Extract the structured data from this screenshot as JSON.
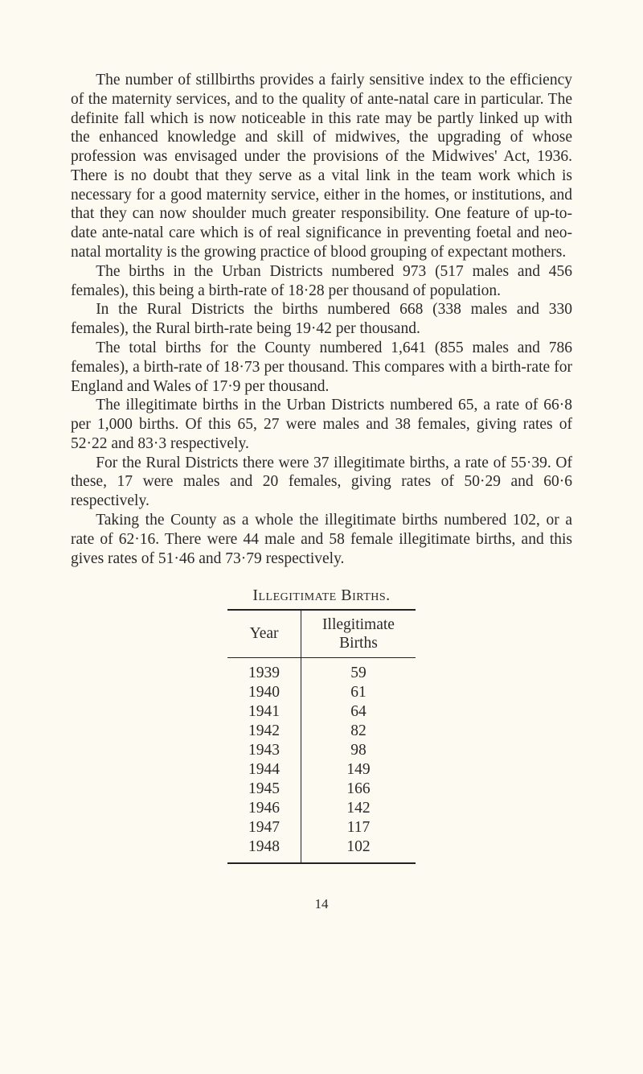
{
  "paragraphs": {
    "p1": "The number of stillbirths provides a fairly sensitive index to the efficiency of the maternity services, and to the quality of ante-natal care in particular. The definite fall which is now noticeable in this rate may be partly linked up with the enhanced knowledge and skill of midwives, the upgrading of whose profession was envisaged under the provisions of the Midwives' Act, 1936. There is no doubt that they serve as a vital link in the team work which is necessary for a good maternity service, either in the homes, or institutions, and that they can now shoulder much greater responsibility. One feature of up-to-date ante-natal care which is of real significance in preventing foetal and neo-natal mortality is the growing practice of blood grouping of expectant mothers.",
    "p2": "The births in the Urban Districts numbered 973 (517 males and 456 females), this being a birth-rate of 18·28 per thousand of population.",
    "p3": "In the Rural Districts the births numbered 668 (338 males and 330 females), the Rural birth-rate being 19·42 per thousand.",
    "p4": "The total births for the County numbered 1,641 (855 males and 786 females), a birth-rate of 18·73 per thousand. This compares with a birth-rate for England and Wales of 17·9 per thousand.",
    "p5": "The illegitimate births in the Urban Districts numbered 65, a rate of 66·8 per 1,000 births. Of this 65, 27 were males and 38 females, giving rates of 52·22 and 83·3 respectively.",
    "p6": "For the Rural Districts there were 37 illegitimate births, a rate of 55·39. Of these, 17 were males and 20 females, giving rates of 50·29 and 60·6 respectively.",
    "p7": "Taking the County as a whole the illegitimate births numbered 102, or a rate of 62·16. There were 44 male and 58 female illegitimate births, and this gives rates of 51·46 and 73·79 respectively."
  },
  "table": {
    "title": "Illegitimate Births.",
    "headers": {
      "col1": "Year",
      "col2_line1": "Illegitimate",
      "col2_line2": "Births"
    },
    "rows": [
      {
        "year": "1939",
        "births": "59"
      },
      {
        "year": "1940",
        "births": "61"
      },
      {
        "year": "1941",
        "births": "64"
      },
      {
        "year": "1942",
        "births": "82"
      },
      {
        "year": "1943",
        "births": "98"
      },
      {
        "year": "1944",
        "births": "149"
      },
      {
        "year": "1945",
        "births": "166"
      },
      {
        "year": "1946",
        "births": "142"
      },
      {
        "year": "1947",
        "births": "117"
      },
      {
        "year": "1948",
        "births": "102"
      }
    ]
  },
  "page_number": "14"
}
